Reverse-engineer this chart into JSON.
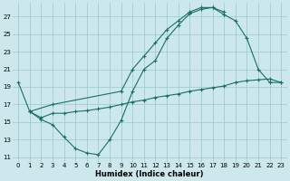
{
  "bg_color": "#cce8ec",
  "grid_color": "#9ecdd4",
  "line_color": "#1a6e66",
  "xlabel": "Humidex (Indice chaleur)",
  "xlim": [
    -0.5,
    23.5
  ],
  "ylim": [
    10.5,
    28.5
  ],
  "xticks": [
    0,
    1,
    2,
    3,
    4,
    5,
    6,
    7,
    8,
    9,
    10,
    11,
    12,
    13,
    14,
    15,
    16,
    17,
    18,
    19,
    20,
    21,
    22,
    23
  ],
  "yticks": [
    11,
    13,
    15,
    17,
    19,
    21,
    23,
    25,
    27
  ],
  "series": [
    {
      "x": [
        0,
        1,
        2,
        3,
        4,
        5,
        6,
        7,
        8,
        9,
        10,
        11,
        12,
        13,
        14,
        15,
        16,
        17,
        18
      ],
      "y": [
        19.5,
        16.2,
        15.3,
        14.7,
        13.3,
        12.0,
        11.5,
        11.3,
        13.0,
        15.2,
        18.5,
        21.0,
        22.0,
        24.5,
        26.0,
        27.3,
        27.8,
        28.0,
        27.5
      ]
    },
    {
      "x": [
        1,
        3,
        9,
        10,
        11,
        12,
        13,
        14,
        15,
        16,
        17,
        18,
        19,
        20,
        21,
        22,
        23
      ],
      "y": [
        16.2,
        17.0,
        18.5,
        21.0,
        22.5,
        24.0,
        25.5,
        26.5,
        27.5,
        28.0,
        28.0,
        27.2,
        26.5,
        24.5,
        21.0,
        19.5,
        19.5
      ]
    },
    {
      "x": [
        1,
        2,
        3,
        4,
        5,
        6,
        7,
        8,
        9,
        10,
        11,
        12,
        13,
        14,
        15,
        16,
        17,
        18,
        19,
        20,
        21,
        22,
        23
      ],
      "y": [
        16.2,
        15.5,
        16.0,
        16.0,
        16.2,
        16.3,
        16.5,
        16.7,
        17.0,
        17.3,
        17.5,
        17.8,
        18.0,
        18.2,
        18.5,
        18.7,
        18.9,
        19.1,
        19.5,
        19.7,
        19.8,
        19.9,
        19.5
      ]
    }
  ]
}
